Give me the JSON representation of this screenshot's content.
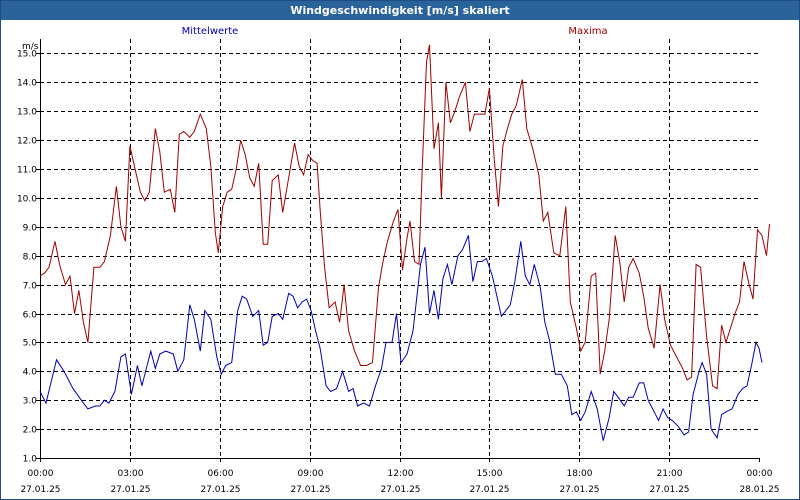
{
  "window": {
    "title": "Windgeschwindigkeit [m/s] skaliert"
  },
  "colors": {
    "titlebar": "#2a6399",
    "mean": "#0000b4",
    "max": "#a00000",
    "grid": "#000000"
  },
  "chart_data": {
    "type": "line",
    "title": "Windgeschwindigkeit [m/s] skaliert",
    "ylabel": "m/s",
    "ylim": [
      1.0,
      15.5
    ],
    "xlim": [
      0,
      24
    ],
    "grid": true,
    "legend": "top",
    "y_ticks": [
      "1.0",
      "2.0",
      "3.0",
      "4.0",
      "5.0",
      "6.0",
      "7.0",
      "8.0",
      "9.0",
      "10.0",
      "11.0",
      "12.0",
      "13.0",
      "14.0",
      "15.0"
    ],
    "x_ticks": [
      {
        "x": 0,
        "time": "00:00",
        "date": "27.01.25"
      },
      {
        "x": 3,
        "time": "03:00",
        "date": "27.01.25"
      },
      {
        "x": 6,
        "time": "06:00",
        "date": "27.01.25"
      },
      {
        "x": 9,
        "time": "09:00",
        "date": "27.01.25"
      },
      {
        "x": 12,
        "time": "12:00",
        "date": "27.01.25"
      },
      {
        "x": 15,
        "time": "15:00",
        "date": "27.01.25"
      },
      {
        "x": 18,
        "time": "18:00",
        "date": "27.01.25"
      },
      {
        "x": 21,
        "time": "21:00",
        "date": "27.01.25"
      },
      {
        "x": 24,
        "time": "00:00",
        "date": "28.01.25"
      }
    ],
    "series": [
      {
        "name": "Mittelwerte",
        "color": "#0000b4",
        "points": [
          [
            0,
            3.3
          ],
          [
            0.2,
            2.9
          ],
          [
            0.55,
            4.4
          ],
          [
            0.8,
            4.0
          ],
          [
            1.1,
            3.4
          ],
          [
            1.45,
            2.9
          ],
          [
            1.6,
            2.7
          ],
          [
            1.85,
            2.8
          ],
          [
            2.0,
            2.8
          ],
          [
            2.15,
            3.0
          ],
          [
            2.3,
            2.9
          ],
          [
            2.5,
            3.3
          ],
          [
            2.7,
            4.5
          ],
          [
            2.85,
            4.6
          ],
          [
            3.05,
            3.2
          ],
          [
            3.25,
            4.2
          ],
          [
            3.4,
            3.5
          ],
          [
            3.7,
            4.7
          ],
          [
            3.85,
            4.1
          ],
          [
            4.0,
            4.6
          ],
          [
            4.2,
            4.7
          ],
          [
            4.45,
            4.6
          ],
          [
            4.6,
            4.0
          ],
          [
            4.8,
            4.4
          ],
          [
            5.0,
            6.3
          ],
          [
            5.15,
            5.8
          ],
          [
            5.35,
            4.7
          ],
          [
            5.5,
            6.1
          ],
          [
            5.7,
            5.8
          ],
          [
            5.9,
            4.5
          ],
          [
            6.05,
            3.9
          ],
          [
            6.2,
            4.2
          ],
          [
            6.4,
            4.3
          ],
          [
            6.6,
            6.1
          ],
          [
            6.75,
            6.6
          ],
          [
            6.9,
            6.5
          ],
          [
            7.1,
            5.9
          ],
          [
            7.3,
            6.1
          ],
          [
            7.45,
            4.9
          ],
          [
            7.6,
            5.0
          ],
          [
            7.75,
            5.9
          ],
          [
            7.95,
            6.0
          ],
          [
            8.1,
            5.8
          ],
          [
            8.3,
            6.7
          ],
          [
            8.45,
            6.6
          ],
          [
            8.6,
            6.2
          ],
          [
            8.75,
            6.4
          ],
          [
            8.9,
            6.5
          ],
          [
            9.05,
            6.1
          ],
          [
            9.2,
            5.4
          ],
          [
            9.35,
            4.8
          ],
          [
            9.55,
            3.5
          ],
          [
            9.7,
            3.3
          ],
          [
            9.9,
            3.4
          ],
          [
            10.1,
            4.0
          ],
          [
            10.3,
            3.3
          ],
          [
            10.45,
            3.4
          ],
          [
            10.6,
            2.8
          ],
          [
            10.8,
            2.9
          ],
          [
            11.0,
            2.8
          ],
          [
            11.2,
            3.5
          ],
          [
            11.4,
            4.1
          ],
          [
            11.55,
            5.0
          ],
          [
            11.75,
            5.0
          ],
          [
            11.9,
            6.0
          ],
          [
            12.05,
            4.3
          ],
          [
            12.25,
            4.6
          ],
          [
            12.45,
            5.4
          ],
          [
            12.7,
            7.7
          ],
          [
            12.85,
            8.3
          ],
          [
            13.0,
            6.0
          ],
          [
            13.15,
            6.8
          ],
          [
            13.3,
            5.8
          ],
          [
            13.45,
            7.2
          ],
          [
            13.6,
            7.7
          ],
          [
            13.75,
            7.0
          ],
          [
            13.95,
            8.0
          ],
          [
            14.1,
            8.2
          ],
          [
            14.3,
            8.7
          ],
          [
            14.45,
            7.1
          ],
          [
            14.6,
            7.8
          ],
          [
            14.75,
            7.8
          ],
          [
            14.9,
            7.9
          ],
          [
            15.1,
            7.3
          ],
          [
            15.25,
            6.6
          ],
          [
            15.4,
            5.9
          ],
          [
            15.55,
            6.1
          ],
          [
            15.7,
            6.3
          ],
          [
            15.85,
            7.1
          ],
          [
            16.05,
            8.5
          ],
          [
            16.2,
            7.3
          ],
          [
            16.35,
            7.0
          ],
          [
            16.5,
            7.7
          ],
          [
            16.7,
            6.9
          ],
          [
            16.85,
            5.7
          ],
          [
            17.0,
            5.1
          ],
          [
            17.2,
            3.9
          ],
          [
            17.4,
            3.9
          ],
          [
            17.6,
            3.5
          ],
          [
            17.75,
            2.5
          ],
          [
            17.9,
            2.6
          ],
          [
            18.05,
            2.3
          ],
          [
            18.2,
            2.6
          ],
          [
            18.4,
            3.3
          ],
          [
            18.6,
            2.7
          ],
          [
            18.8,
            1.6
          ],
          [
            19.0,
            2.4
          ],
          [
            19.15,
            3.3
          ],
          [
            19.3,
            3.1
          ],
          [
            19.5,
            2.8
          ],
          [
            19.65,
            3.1
          ],
          [
            19.8,
            3.1
          ],
          [
            20.0,
            3.6
          ],
          [
            20.15,
            3.6
          ],
          [
            20.3,
            3.0
          ],
          [
            20.5,
            2.6
          ],
          [
            20.65,
            2.3
          ],
          [
            20.8,
            2.7
          ],
          [
            20.95,
            2.4
          ],
          [
            21.1,
            2.3
          ],
          [
            21.3,
            2.1
          ],
          [
            21.5,
            1.8
          ],
          [
            21.65,
            1.9
          ],
          [
            21.8,
            3.2
          ],
          [
            22.0,
            4.0
          ],
          [
            22.1,
            4.3
          ],
          [
            22.25,
            3.9
          ],
          [
            22.4,
            2.0
          ],
          [
            22.6,
            1.7
          ],
          [
            22.75,
            2.5
          ],
          [
            22.9,
            2.6
          ],
          [
            23.1,
            2.7
          ],
          [
            23.3,
            3.2
          ],
          [
            23.45,
            3.4
          ],
          [
            23.6,
            3.5
          ],
          [
            23.75,
            4.2
          ],
          [
            23.9,
            5.0
          ],
          [
            24.0,
            4.8
          ],
          [
            24.1,
            4.3
          ]
        ]
      },
      {
        "name": "Maxima",
        "color": "#a00000",
        "points": [
          [
            0,
            7.3
          ],
          [
            0.15,
            7.4
          ],
          [
            0.3,
            7.6
          ],
          [
            0.5,
            8.5
          ],
          [
            0.65,
            7.7
          ],
          [
            0.85,
            7.0
          ],
          [
            1.0,
            7.3
          ],
          [
            1.15,
            6.0
          ],
          [
            1.3,
            6.8
          ],
          [
            1.45,
            5.7
          ],
          [
            1.6,
            5.0
          ],
          [
            1.8,
            7.6
          ],
          [
            2.0,
            7.6
          ],
          [
            2.15,
            7.8
          ],
          [
            2.35,
            8.7
          ],
          [
            2.55,
            10.4
          ],
          [
            2.7,
            9.0
          ],
          [
            2.85,
            8.5
          ],
          [
            3.0,
            11.8
          ],
          [
            3.15,
            11.1
          ],
          [
            3.35,
            10.2
          ],
          [
            3.5,
            9.9
          ],
          [
            3.65,
            10.2
          ],
          [
            3.85,
            12.4
          ],
          [
            4.0,
            11.6
          ],
          [
            4.15,
            10.2
          ],
          [
            4.35,
            10.3
          ],
          [
            4.5,
            9.5
          ],
          [
            4.65,
            12.2
          ],
          [
            4.8,
            12.3
          ],
          [
            5.0,
            12.1
          ],
          [
            5.15,
            12.3
          ],
          [
            5.35,
            12.9
          ],
          [
            5.55,
            12.4
          ],
          [
            5.7,
            11.1
          ],
          [
            5.85,
            8.8
          ],
          [
            5.95,
            8.1
          ],
          [
            6.1,
            9.7
          ],
          [
            6.25,
            10.2
          ],
          [
            6.4,
            10.3
          ],
          [
            6.55,
            11.0
          ],
          [
            6.7,
            12.0
          ],
          [
            6.85,
            11.5
          ],
          [
            7.0,
            10.7
          ],
          [
            7.15,
            10.4
          ],
          [
            7.3,
            11.2
          ],
          [
            7.45,
            8.4
          ],
          [
            7.6,
            8.4
          ],
          [
            7.75,
            10.6
          ],
          [
            7.95,
            10.8
          ],
          [
            8.1,
            9.5
          ],
          [
            8.3,
            10.7
          ],
          [
            8.5,
            11.9
          ],
          [
            8.65,
            11.1
          ],
          [
            8.8,
            10.8
          ],
          [
            8.95,
            11.5
          ],
          [
            9.1,
            11.3
          ],
          [
            9.25,
            11.2
          ],
          [
            9.35,
            9.6
          ],
          [
            9.5,
            7.6
          ],
          [
            9.65,
            6.2
          ],
          [
            9.85,
            6.4
          ],
          [
            10.0,
            5.7
          ],
          [
            10.15,
            7.0
          ],
          [
            10.3,
            5.4
          ],
          [
            10.5,
            4.7
          ],
          [
            10.7,
            4.2
          ],
          [
            10.9,
            4.2
          ],
          [
            11.1,
            4.3
          ],
          [
            11.3,
            6.9
          ],
          [
            11.45,
            7.8
          ],
          [
            11.6,
            8.5
          ],
          [
            11.8,
            9.2
          ],
          [
            11.95,
            9.6
          ],
          [
            12.1,
            7.5
          ],
          [
            12.25,
            8.6
          ],
          [
            12.35,
            9.2
          ],
          [
            12.5,
            7.8
          ],
          [
            12.65,
            7.7
          ],
          [
            12.75,
            10.8
          ],
          [
            12.9,
            14.7
          ],
          [
            13.0,
            15.3
          ],
          [
            13.15,
            11.7
          ],
          [
            13.3,
            12.6
          ],
          [
            13.4,
            10.0
          ],
          [
            13.55,
            14.0
          ],
          [
            13.7,
            12.6
          ],
          [
            13.85,
            13.0
          ],
          [
            14.0,
            13.5
          ],
          [
            14.2,
            14.0
          ],
          [
            14.35,
            12.3
          ],
          [
            14.5,
            12.9
          ],
          [
            14.65,
            12.9
          ],
          [
            14.85,
            12.9
          ],
          [
            15.0,
            13.8
          ],
          [
            15.15,
            11.5
          ],
          [
            15.3,
            9.7
          ],
          [
            15.45,
            11.8
          ],
          [
            15.6,
            12.4
          ],
          [
            15.75,
            12.9
          ],
          [
            15.9,
            13.2
          ],
          [
            16.1,
            14.1
          ],
          [
            16.25,
            12.4
          ],
          [
            16.45,
            11.7
          ],
          [
            16.65,
            10.8
          ],
          [
            16.8,
            9.2
          ],
          [
            16.95,
            9.5
          ],
          [
            17.15,
            8.1
          ],
          [
            17.35,
            8.0
          ],
          [
            17.55,
            9.7
          ],
          [
            17.7,
            6.4
          ],
          [
            17.9,
            5.5
          ],
          [
            18.05,
            4.7
          ],
          [
            18.2,
            5.0
          ],
          [
            18.4,
            7.3
          ],
          [
            18.55,
            7.4
          ],
          [
            18.7,
            3.9
          ],
          [
            18.85,
            4.7
          ],
          [
            19.0,
            5.8
          ],
          [
            19.2,
            8.7
          ],
          [
            19.35,
            7.8
          ],
          [
            19.5,
            6.4
          ],
          [
            19.65,
            7.6
          ],
          [
            19.8,
            7.9
          ],
          [
            20.0,
            7.4
          ],
          [
            20.15,
            6.6
          ],
          [
            20.3,
            5.5
          ],
          [
            20.5,
            4.8
          ],
          [
            20.7,
            7.0
          ],
          [
            20.85,
            5.8
          ],
          [
            21.05,
            4.9
          ],
          [
            21.25,
            4.5
          ],
          [
            21.45,
            4.1
          ],
          [
            21.6,
            3.7
          ],
          [
            21.75,
            3.8
          ],
          [
            21.9,
            7.7
          ],
          [
            22.05,
            7.6
          ],
          [
            22.25,
            5.2
          ],
          [
            22.45,
            3.5
          ],
          [
            22.6,
            3.4
          ],
          [
            22.75,
            5.6
          ],
          [
            22.9,
            5.0
          ],
          [
            23.05,
            5.5
          ],
          [
            23.2,
            6.0
          ],
          [
            23.35,
            6.4
          ],
          [
            23.5,
            7.8
          ],
          [
            23.65,
            7.1
          ],
          [
            23.8,
            6.5
          ],
          [
            23.95,
            8.9
          ],
          [
            24.1,
            8.7
          ],
          [
            24.25,
            8.0
          ],
          [
            24.35,
            9.1
          ]
        ]
      }
    ]
  }
}
